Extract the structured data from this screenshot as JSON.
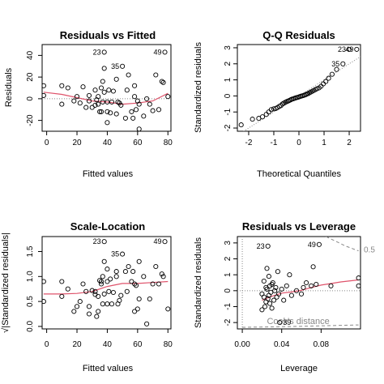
{
  "chart_data": [
    {
      "type": "scatter",
      "title": "Residuals vs Fitted",
      "xlabel": "Fitted values",
      "ylabel": "Residuals",
      "xlim": [
        -3,
        82
      ],
      "ylim": [
        -30,
        50
      ],
      "x_ticks": [
        0,
        20,
        40,
        60,
        80
      ],
      "y_ticks": [
        -20,
        0,
        20,
        40
      ],
      "ref_line": {
        "type": "h",
        "value": 0,
        "style": "dotted"
      },
      "points": [
        [
          -2,
          12
        ],
        [
          -2,
          3
        ],
        [
          10,
          12
        ],
        [
          10,
          -5
        ],
        [
          14,
          10
        ],
        [
          18,
          -2
        ],
        [
          20,
          2
        ],
        [
          22,
          -4
        ],
        [
          24,
          11
        ],
        [
          26,
          -8
        ],
        [
          28,
          3
        ],
        [
          28,
          -2
        ],
        [
          30,
          -8
        ],
        [
          32,
          -6
        ],
        [
          32,
          8
        ],
        [
          33,
          -1
        ],
        [
          34,
          -5
        ],
        [
          34,
          2
        ],
        [
          35,
          -12
        ],
        [
          36,
          10
        ],
        [
          36,
          -12
        ],
        [
          37,
          16
        ],
        [
          37,
          -3
        ],
        [
          38,
          6
        ],
        [
          38,
          28
        ],
        [
          38,
          43
        ],
        [
          40,
          -3
        ],
        [
          40,
          -12
        ],
        [
          40,
          -22
        ],
        [
          41,
          8
        ],
        [
          42,
          -13
        ],
        [
          43,
          -3
        ],
        [
          44,
          7
        ],
        [
          46,
          -14
        ],
        [
          46,
          18
        ],
        [
          47,
          -3
        ],
        [
          48,
          -4
        ],
        [
          49,
          -6
        ],
        [
          50,
          30
        ],
        [
          52,
          -18
        ],
        [
          53,
          8
        ],
        [
          54,
          22
        ],
        [
          56,
          -12
        ],
        [
          57,
          -18
        ],
        [
          58,
          12
        ],
        [
          58,
          2
        ],
        [
          59,
          -10
        ],
        [
          60,
          -2
        ],
        [
          61,
          -28
        ],
        [
          61,
          -5
        ],
        [
          64,
          -16
        ],
        [
          66,
          0
        ],
        [
          68,
          -5
        ],
        [
          70,
          -11
        ],
        [
          72,
          22
        ],
        [
          74,
          -10
        ],
        [
          76,
          16
        ],
        [
          77,
          15
        ],
        [
          78,
          43
        ],
        [
          80,
          2
        ]
      ],
      "labeled_points": [
        {
          "label": "23",
          "x": 38,
          "y": 43
        },
        {
          "label": "35",
          "x": 50,
          "y": 30
        },
        {
          "label": "49",
          "x": 78,
          "y": 43
        }
      ],
      "smooth": [
        [
          -2,
          6
        ],
        [
          10,
          4
        ],
        [
          20,
          1
        ],
        [
          30,
          -2
        ],
        [
          40,
          -3
        ],
        [
          50,
          -5
        ],
        [
          60,
          -4
        ],
        [
          70,
          -2
        ],
        [
          80,
          5
        ]
      ]
    },
    {
      "type": "scatter",
      "title": "Q-Q Residuals",
      "xlabel": "Theoretical Quantiles",
      "ylabel": "Standardized residuals",
      "xlim": [
        -2.45,
        2.45
      ],
      "ylim": [
        -2.2,
        3.2
      ],
      "x_ticks": [
        -2,
        -1,
        0,
        1,
        2
      ],
      "y_ticks": [
        -2,
        -1,
        0,
        1,
        2,
        3
      ],
      "ref_line": {
        "type": "abline",
        "intercept": 0,
        "slope": 1,
        "style": "dotted"
      },
      "points": [
        [
          -2.3,
          -1.8
        ],
        [
          -1.85,
          -1.45
        ],
        [
          -1.6,
          -1.4
        ],
        [
          -1.45,
          -1.3
        ],
        [
          -1.3,
          -1.15
        ],
        [
          -1.2,
          -1.0
        ],
        [
          -1.1,
          -0.85
        ],
        [
          -1.0,
          -0.8
        ],
        [
          -0.92,
          -0.78
        ],
        [
          -0.85,
          -0.72
        ],
        [
          -0.78,
          -0.65
        ],
        [
          -0.72,
          -0.6
        ],
        [
          -0.65,
          -0.5
        ],
        [
          -0.6,
          -0.45
        ],
        [
          -0.54,
          -0.4
        ],
        [
          -0.48,
          -0.35
        ],
        [
          -0.43,
          -0.32
        ],
        [
          -0.38,
          -0.28
        ],
        [
          -0.33,
          -0.24
        ],
        [
          -0.28,
          -0.2
        ],
        [
          -0.23,
          -0.18
        ],
        [
          -0.18,
          -0.15
        ],
        [
          -0.13,
          -0.12
        ],
        [
          -0.08,
          -0.1
        ],
        [
          -0.03,
          -0.08
        ],
        [
          0.02,
          -0.05
        ],
        [
          0.07,
          -0.02
        ],
        [
          0.12,
          0.0
        ],
        [
          0.17,
          0.02
        ],
        [
          0.22,
          0.05
        ],
        [
          0.27,
          0.08
        ],
        [
          0.32,
          0.12
        ],
        [
          0.37,
          0.15
        ],
        [
          0.43,
          0.2
        ],
        [
          0.48,
          0.25
        ],
        [
          0.54,
          0.3
        ],
        [
          0.6,
          0.35
        ],
        [
          0.66,
          0.4
        ],
        [
          0.72,
          0.45
        ],
        [
          0.8,
          0.5
        ],
        [
          0.88,
          0.6
        ],
        [
          0.97,
          0.75
        ],
        [
          1.07,
          0.9
        ],
        [
          1.18,
          1.1
        ],
        [
          1.32,
          1.35
        ],
        [
          1.5,
          1.65
        ],
        [
          1.75,
          2.0
        ],
        [
          2.0,
          2.9
        ],
        [
          2.3,
          2.9
        ]
      ],
      "labeled_points": [
        {
          "label": "23",
          "x": 2.0,
          "y": 2.9
        },
        {
          "label": "49",
          "x": 2.3,
          "y": 2.9
        },
        {
          "label": "35",
          "x": 1.75,
          "y": 2.0
        }
      ]
    },
    {
      "type": "scatter",
      "title": "Scale-Location",
      "xlabel": "Fitted values",
      "ylabel": "√|Standardized residuals|",
      "xlim": [
        -3,
        82
      ],
      "ylim": [
        -0.05,
        1.8
      ],
      "x_ticks": [
        0,
        20,
        40,
        60,
        80
      ],
      "y_ticks": [
        0.0,
        0.5,
        1.0,
        1.5
      ],
      "points": [
        [
          -2,
          0.9
        ],
        [
          -2,
          0.5
        ],
        [
          10,
          0.9
        ],
        [
          10,
          0.6
        ],
        [
          14,
          0.75
        ],
        [
          18,
          0.3
        ],
        [
          20,
          0.4
        ],
        [
          22,
          0.5
        ],
        [
          24,
          0.85
        ],
        [
          26,
          0.7
        ],
        [
          28,
          0.4
        ],
        [
          28,
          0.25
        ],
        [
          30,
          0.72
        ],
        [
          32,
          0.64
        ],
        [
          32,
          0.7
        ],
        [
          33,
          0.2
        ],
        [
          34,
          0.6
        ],
        [
          34,
          0.3
        ],
        [
          35,
          0.92
        ],
        [
          36,
          0.85
        ],
        [
          36,
          0.9
        ],
        [
          37,
          1.0
        ],
        [
          37,
          0.45
        ],
        [
          38,
          0.65
        ],
        [
          38,
          1.3
        ],
        [
          38,
          1.7
        ],
        [
          40,
          0.45
        ],
        [
          40,
          0.9
        ],
        [
          40,
          1.15
        ],
        [
          41,
          0.7
        ],
        [
          42,
          0.95
        ],
        [
          43,
          0.45
        ],
        [
          44,
          0.68
        ],
        [
          46,
          1.0
        ],
        [
          46,
          1.1
        ],
        [
          47,
          0.45
        ],
        [
          48,
          0.52
        ],
        [
          49,
          0.62
        ],
        [
          50,
          1.45
        ],
        [
          52,
          1.1
        ],
        [
          53,
          0.7
        ],
        [
          54,
          1.2
        ],
        [
          56,
          0.9
        ],
        [
          57,
          1.1
        ],
        [
          58,
          0.85
        ],
        [
          58,
          0.3
        ],
        [
          59,
          0.82
        ],
        [
          60,
          0.35
        ],
        [
          61,
          1.3
        ],
        [
          61,
          0.55
        ],
        [
          64,
          1.0
        ],
        [
          66,
          0.05
        ],
        [
          68,
          0.55
        ],
        [
          70,
          0.85
        ],
        [
          72,
          1.2
        ],
        [
          74,
          0.85
        ],
        [
          76,
          1.05
        ],
        [
          77,
          1.0
        ],
        [
          78,
          1.7
        ],
        [
          80,
          0.35
        ]
      ],
      "labeled_points": [
        {
          "label": "23",
          "x": 38,
          "y": 1.7
        },
        {
          "label": "35",
          "x": 50,
          "y": 1.45
        },
        {
          "label": "49",
          "x": 78,
          "y": 1.7
        }
      ],
      "smooth": [
        [
          -2,
          0.65
        ],
        [
          10,
          0.65
        ],
        [
          20,
          0.66
        ],
        [
          30,
          0.7
        ],
        [
          40,
          0.8
        ],
        [
          50,
          0.86
        ],
        [
          60,
          0.86
        ],
        [
          70,
          0.88
        ],
        [
          80,
          0.9
        ]
      ]
    },
    {
      "type": "scatter",
      "title": "Residuals vs Leverage",
      "xlabel": "Leverage",
      "ylabel": "Standardized residuals",
      "xlim": [
        -0.005,
        0.12
      ],
      "ylim": [
        -2.4,
        3.4
      ],
      "x_ticks": [
        0.0,
        0.04,
        0.08
      ],
      "y_ticks": [
        -2,
        -1,
        0,
        1,
        2,
        3
      ],
      "ref_line": {
        "type": "h",
        "value": 0,
        "style": "dotted"
      },
      "points": [
        [
          0.02,
          -0.2
        ],
        [
          0.02,
          -1.2
        ],
        [
          0.022,
          0.6
        ],
        [
          0.022,
          -0.4
        ],
        [
          0.023,
          -1.0
        ],
        [
          0.024,
          0.2
        ],
        [
          0.024,
          -0.7
        ],
        [
          0.025,
          0.1
        ],
        [
          0.025,
          1.4
        ],
        [
          0.026,
          -0.5
        ],
        [
          0.026,
          2.8
        ],
        [
          0.027,
          -0.3
        ],
        [
          0.027,
          0.9
        ],
        [
          0.028,
          0.3
        ],
        [
          0.028,
          -0.8
        ],
        [
          0.029,
          -0.1
        ],
        [
          0.03,
          0.4
        ],
        [
          0.03,
          -1.1
        ],
        [
          0.031,
          0.5
        ],
        [
          0.032,
          -0.6
        ],
        [
          0.033,
          0.0
        ],
        [
          0.034,
          0.2
        ],
        [
          0.035,
          -0.4
        ],
        [
          0.036,
          1.2
        ],
        [
          0.037,
          -0.2
        ],
        [
          0.038,
          -2.0
        ],
        [
          0.04,
          0.1
        ],
        [
          0.042,
          -0.6
        ],
        [
          0.045,
          0.3
        ],
        [
          0.048,
          1.0
        ],
        [
          0.05,
          -0.3
        ],
        [
          0.055,
          0.0
        ],
        [
          0.06,
          -0.2
        ],
        [
          0.062,
          0.2
        ],
        [
          0.065,
          0.5
        ],
        [
          0.07,
          0.3
        ],
        [
          0.072,
          1.5
        ],
        [
          0.075,
          0.4
        ],
        [
          0.078,
          2.9
        ],
        [
          0.09,
          0.3
        ],
        [
          0.118,
          0.8
        ],
        [
          0.118,
          0.3
        ]
      ],
      "labeled_points": [
        {
          "label": "23",
          "x": 0.026,
          "y": 2.8
        },
        {
          "label": "49",
          "x": 0.078,
          "y": 2.9
        },
        {
          "label": "39",
          "x": 0.038,
          "y": -2.0
        }
      ],
      "smooth": [
        [
          0.02,
          -0.6
        ],
        [
          0.03,
          -0.35
        ],
        [
          0.04,
          -0.15
        ],
        [
          0.05,
          -0.08
        ],
        [
          0.06,
          0.02
        ],
        [
          0.07,
          0.2
        ],
        [
          0.08,
          0.35
        ],
        [
          0.09,
          0.45
        ],
        [
          0.1,
          0.55
        ],
        [
          0.118,
          0.68
        ]
      ],
      "cooks_distance": {
        "label": "Cook's distance",
        "level_label": "0.5",
        "upper": [
          [
            0.085,
            3.4
          ],
          [
            0.095,
            3.1
          ],
          [
            0.105,
            2.8
          ],
          [
            0.118,
            2.5
          ]
        ],
        "lower": [
          [
            0.0,
            -2.3
          ],
          [
            0.05,
            -2.25
          ],
          [
            0.118,
            -2.15
          ]
        ]
      }
    }
  ],
  "style": {
    "point_color": "#000000",
    "smooth_color": "#df536b",
    "ref_color": "#888888"
  }
}
